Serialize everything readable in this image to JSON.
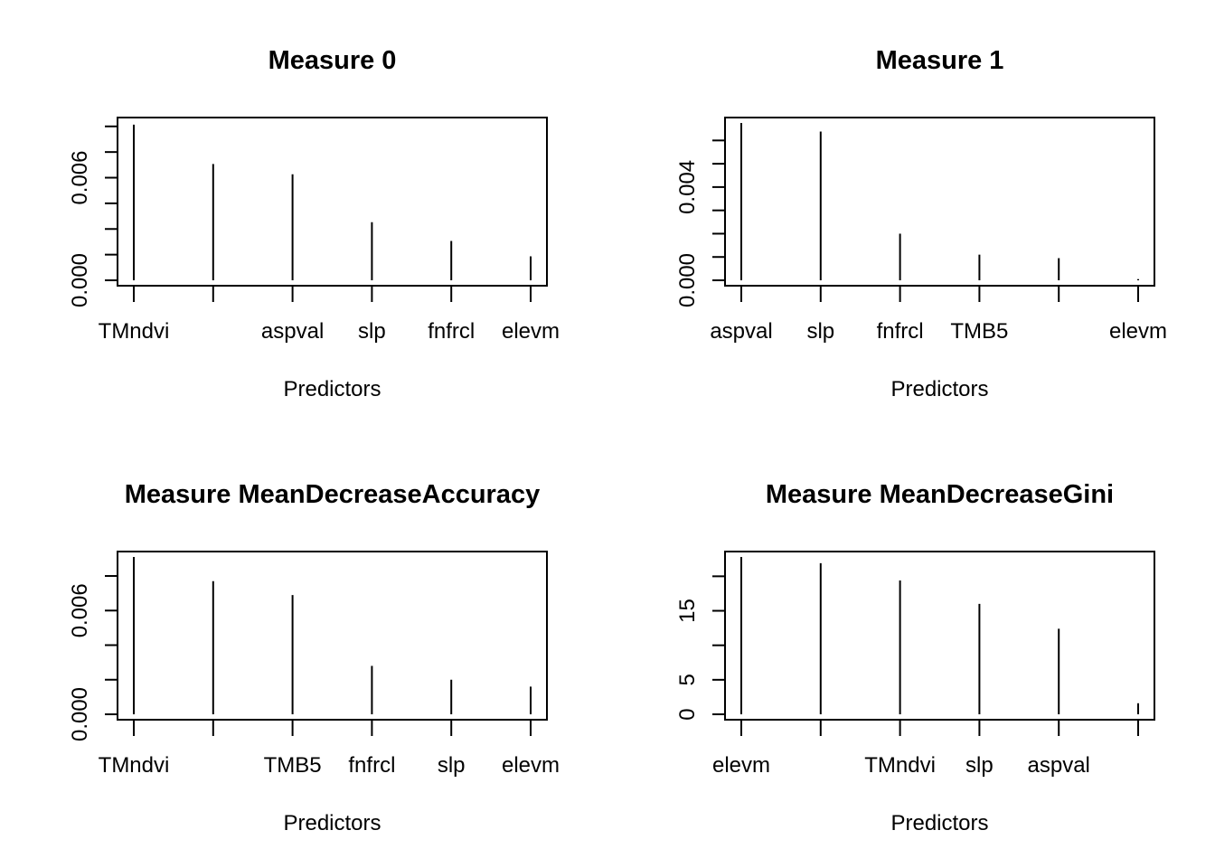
{
  "chart_data": [
    {
      "type": "bar",
      "style": "histogram-lines",
      "title": "Measure 0",
      "xlabel": "Predictors",
      "ylabel": "",
      "categories": [
        "TMndvi",
        "",
        "aspval",
        "slp",
        "fnfrcl",
        "elevm"
      ],
      "values": [
        0.0091,
        0.0068,
        0.0062,
        0.0034,
        0.0023,
        0.0014
      ],
      "ylim": [
        0,
        0.0092
      ],
      "yticks": [
        0,
        0.0015,
        0.003,
        0.0045,
        0.006,
        0.0075,
        0.009
      ],
      "ytick_labels": [
        "0.000",
        "",
        "",
        "",
        "0.006",
        "",
        ""
      ]
    },
    {
      "type": "bar",
      "style": "histogram-lines",
      "title": "Measure 1",
      "xlabel": "Predictors",
      "ylabel": "",
      "categories": [
        "aspval",
        "slp",
        "fnfrcl",
        "TMB5",
        "",
        "elevm"
      ],
      "values": [
        0.00675,
        0.00638,
        0.002,
        0.0011,
        0.00095,
        5e-05
      ],
      "ylim": [
        0,
        0.00675
      ],
      "yticks": [
        0,
        0.001,
        0.002,
        0.003,
        0.004,
        0.005,
        0.006
      ],
      "ytick_labels": [
        "0.000",
        "",
        "",
        "",
        "0.004",
        "",
        ""
      ]
    },
    {
      "type": "bar",
      "style": "histogram-lines",
      "title": "Measure MeanDecreaseAccuracy",
      "xlabel": "Predictors",
      "ylabel": "",
      "categories": [
        "TMndvi",
        "",
        "TMB5",
        "fnfrcl",
        "slp",
        "elevm"
      ],
      "values": [
        0.0091,
        0.0077,
        0.0069,
        0.0028,
        0.002,
        0.0016
      ],
      "ylim": [
        0,
        0.0091
      ],
      "yticks": [
        0,
        0.002,
        0.004,
        0.006,
        0.008
      ],
      "ytick_labels": [
        "0.000",
        "",
        "",
        "0.006",
        ""
      ]
    },
    {
      "type": "bar",
      "style": "histogram-lines",
      "title": "Measure MeanDecreaseGini",
      "xlabel": "Predictors",
      "ylabel": "",
      "categories": [
        "elevm",
        "",
        "TMndvi",
        "slp",
        "aspval",
        ""
      ],
      "values": [
        22.8,
        21.9,
        19.4,
        16.0,
        12.4,
        1.6
      ],
      "ylim": [
        0,
        22.8
      ],
      "yticks": [
        0,
        5,
        10,
        15,
        20
      ],
      "ytick_labels": [
        "0",
        "5",
        "",
        "15",
        ""
      ]
    }
  ]
}
